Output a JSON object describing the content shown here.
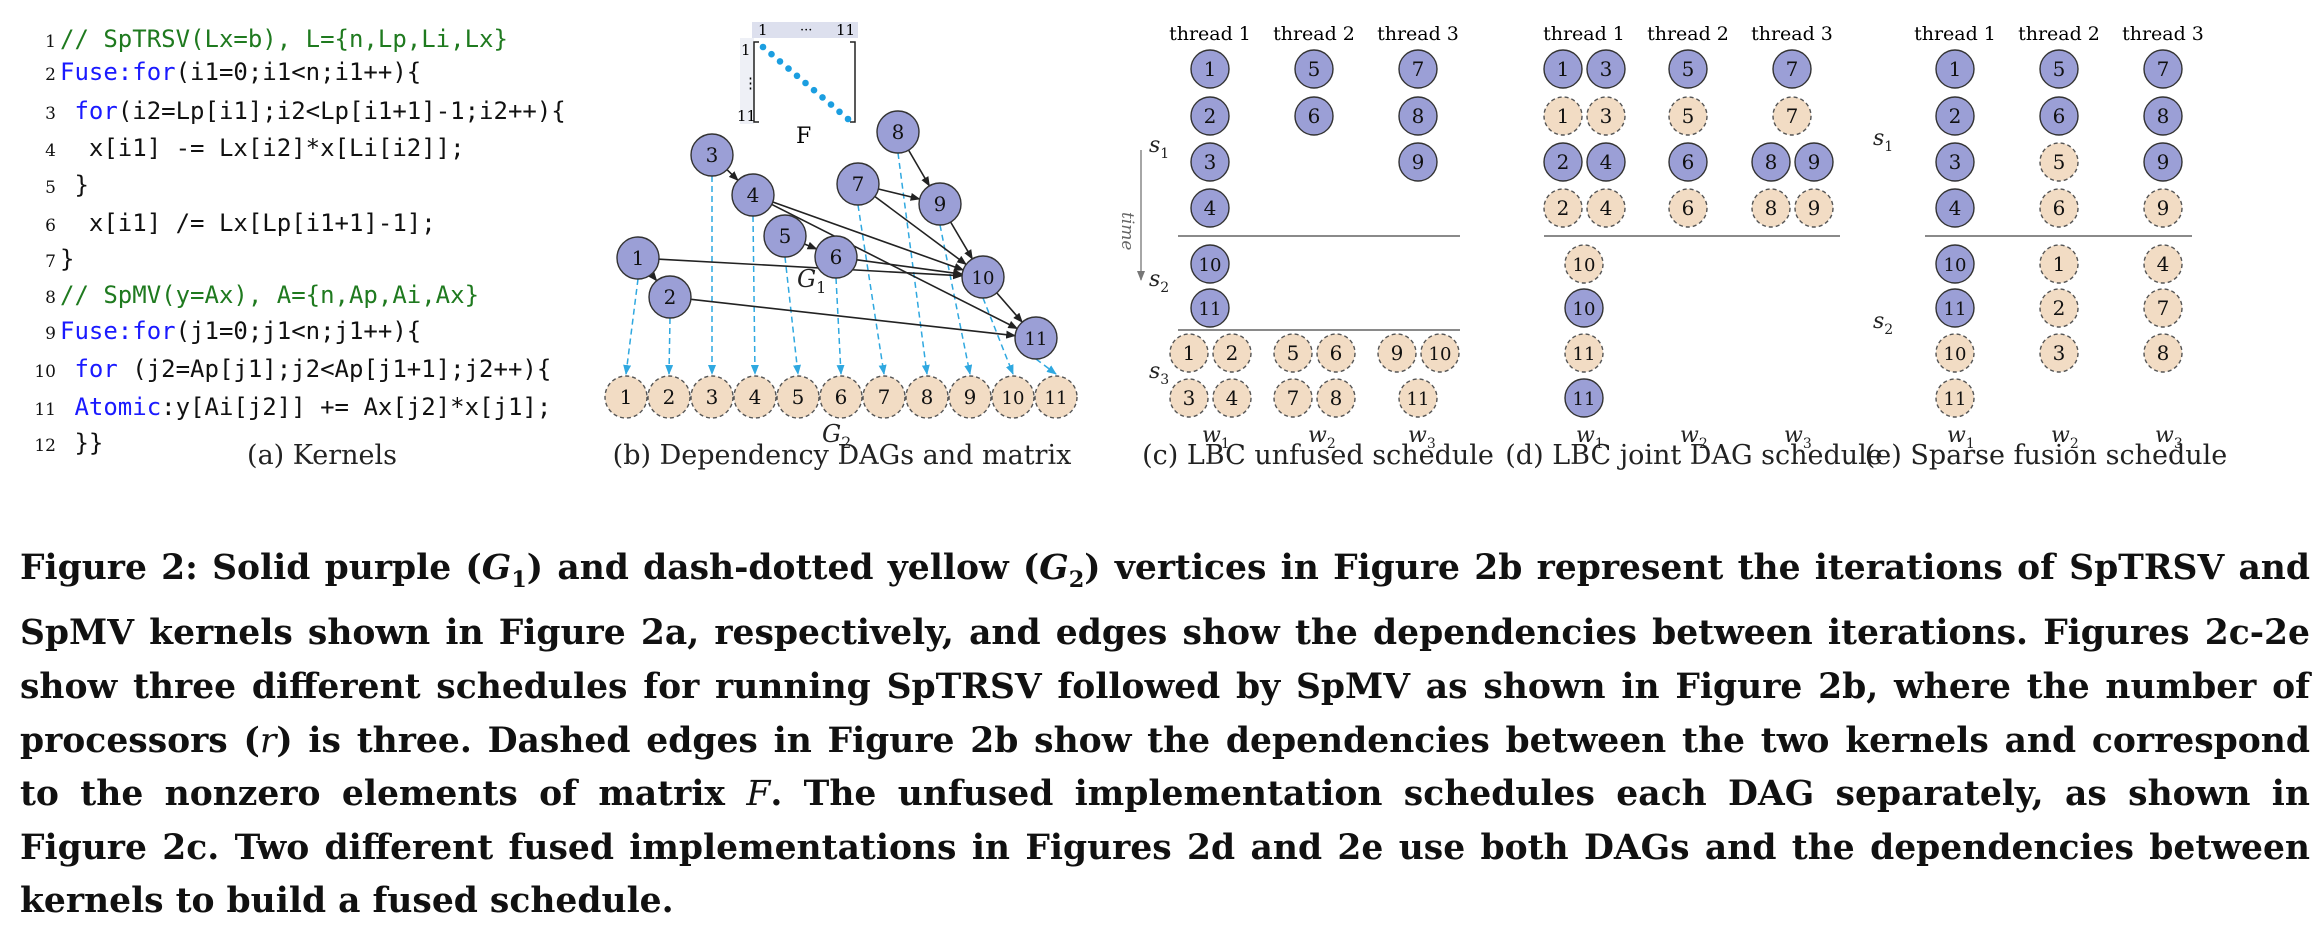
{
  "code": {
    "lines": [
      {
        "num": "1",
        "parts": [
          {
            "cls": "c-comment",
            "text": "// SpTRSV(Lx=b), L={n,Lp,Li,Lx}"
          }
        ]
      },
      {
        "num": "2",
        "parts": [
          {
            "cls": "c-kw",
            "text": "Fuse:for"
          },
          {
            "cls": "c-plain",
            "text": "(i1=0;i1<n;i1++){"
          }
        ]
      },
      {
        "num": "3",
        "parts": [
          {
            "cls": "c-plain",
            "text": " "
          },
          {
            "cls": "c-kw",
            "text": "for"
          },
          {
            "cls": "c-plain",
            "text": "(i2=Lp[i1];i2<Lp[i1+1]-1;i2++){"
          }
        ]
      },
      {
        "num": "4",
        "parts": [
          {
            "cls": "c-plain",
            "text": "  x[i1] -= Lx[i2]*x[Li[i2]];"
          }
        ]
      },
      {
        "num": "5",
        "parts": [
          {
            "cls": "c-plain",
            "text": " }"
          }
        ]
      },
      {
        "num": "6",
        "parts": [
          {
            "cls": "c-plain",
            "text": "  x[i1] /= Lx[Lp[i1+1]-1];"
          }
        ]
      },
      {
        "num": "7",
        "parts": [
          {
            "cls": "c-plain",
            "text": "}"
          }
        ]
      },
      {
        "num": "8",
        "parts": [
          {
            "cls": "c-comment",
            "text": "// SpMV(y=Ax), A={n,Ap,Ai,Ax}"
          }
        ]
      },
      {
        "num": "9",
        "parts": [
          {
            "cls": "c-kw",
            "text": "Fuse:for"
          },
          {
            "cls": "c-plain",
            "text": "(j1=0;j1<n;j1++){"
          }
        ]
      },
      {
        "num": "10",
        "parts": [
          {
            "cls": "c-plain",
            "text": " "
          },
          {
            "cls": "c-kw",
            "text": "for"
          },
          {
            "cls": "c-plain",
            "text": " (j2=Ap[j1];j2<Ap[j1+1];j2++){"
          }
        ]
      },
      {
        "num": "11",
        "parts": [
          {
            "cls": "c-plain",
            "text": " "
          },
          {
            "cls": "c-kw",
            "text": "Atomic"
          },
          {
            "cls": "c-plain",
            "text": ":y[Ai[j2]] += Ax[j2]*x[j1];"
          }
        ]
      },
      {
        "num": "12",
        "parts": [
          {
            "cls": "c-plain",
            "text": " }}"
          }
        ]
      }
    ]
  },
  "subcaptions": {
    "a": "(a) Kernels",
    "b": "(b) Dependency DAGs and matrix",
    "c": "(c) LBC unfused schedule",
    "d": "(d) LBC joint DAG schedule",
    "e": "(e) Sparse fusion schedule"
  },
  "matrix": {
    "label": "F",
    "col_first": "1",
    "col_dots": "···",
    "col_last": "11",
    "row_first": "1",
    "row_dots": "⋮",
    "row_last": "11"
  },
  "dag": {
    "g1_label": "G",
    "g1_sub": "1",
    "g2_label": "G",
    "g2_sub": "2",
    "g1_nodes": [
      "1",
      "2",
      "3",
      "4",
      "5",
      "6",
      "7",
      "8",
      "9",
      "10",
      "11"
    ],
    "g2_nodes": [
      "1",
      "2",
      "3",
      "4",
      "5",
      "6",
      "7",
      "8",
      "9",
      "10",
      "11"
    ]
  },
  "schedules": {
    "thread_labels": [
      "thread 1",
      "thread 2",
      "thread 3"
    ],
    "worker_labels": [
      {
        "w": "w",
        "sub": "1"
      },
      {
        "w": "w",
        "sub": "2"
      },
      {
        "w": "w",
        "sub": "3"
      }
    ],
    "s_labels": [
      {
        "s": "s",
        "sub": "1"
      },
      {
        "s": "s",
        "sub": "2"
      },
      {
        "s": "s",
        "sub": "3"
      }
    ],
    "time_label": "time",
    "colors": {
      "purple": "#9b9fd6",
      "tan": "#f2dcc4"
    }
  },
  "caption": {
    "lines": [
      "Figure 2: Solid purple (G1) and dash-dotted yellow (G2) vertices in Figure 2b represent the iterations of SpTRSV and",
      "SpMV kernels shown in Figure 2a, respectively, and edges show the dependencies between iterations. Figures 2c-2e",
      "show three different schedules for running SpTRSV followed by SpMV as shown in Figure 2b, where the number of",
      "processors (r) is three. Dashed edges in Figure 2b show the dependencies between the two kernels and correspond",
      "to the nonzero elements of matrix F. The unfused implementation schedules each DAG separately, as shown in",
      "Figure 2c. Two different fused implementations in Figures 2d and 2e use both DAGs and the dependencies between",
      "kernels to build a fused schedule."
    ]
  }
}
